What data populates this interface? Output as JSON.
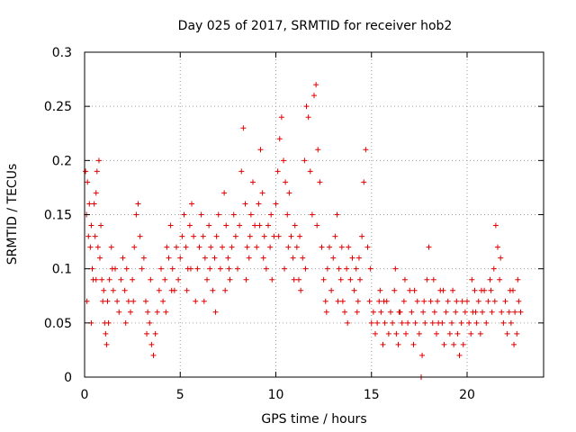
{
  "chart_data": {
    "type": "scatter",
    "title": "Day 025 of 2017, SRMTID for receiver hob2",
    "xlabel": "GPS time / hours",
    "ylabel": "SRMTID / TECUs",
    "xlim": [
      0,
      24
    ],
    "ylim": [
      0,
      0.3
    ],
    "x_ticks": [
      0,
      5,
      10,
      15,
      20
    ],
    "x_tick_labels": [
      "0",
      "5",
      "10",
      "15",
      "20"
    ],
    "y_ticks": [
      0,
      0.05,
      0.1,
      0.15,
      0.2,
      0.25,
      0.3
    ],
    "y_tick_labels": [
      "0",
      "0.05",
      "0.1",
      "0.15",
      "0.2",
      "0.25",
      "0.3"
    ],
    "grid": true,
    "marker": "plus",
    "color": "#e00000",
    "series": [
      {
        "name": "SRMTID",
        "points": [
          [
            0.05,
            0.19
          ],
          [
            0.1,
            0.15
          ],
          [
            0.15,
            0.18
          ],
          [
            0.2,
            0.13
          ],
          [
            0.25,
            0.16
          ],
          [
            0.3,
            0.12
          ],
          [
            0.35,
            0.14
          ],
          [
            0.4,
            0.1
          ],
          [
            0.45,
            0.09
          ],
          [
            0.5,
            0.16
          ],
          [
            0.55,
            0.13
          ],
          [
            0.6,
            0.17
          ],
          [
            0.65,
            0.19
          ],
          [
            0.7,
            0.12
          ],
          [
            0.75,
            0.2
          ],
          [
            0.8,
            0.11
          ],
          [
            0.85,
            0.14
          ],
          [
            0.9,
            0.09
          ],
          [
            0.95,
            0.07
          ],
          [
            1.0,
            0.08
          ],
          [
            1.05,
            0.05
          ],
          [
            1.1,
            0.04
          ],
          [
            1.15,
            0.03
          ],
          [
            1.2,
            0.07
          ],
          [
            1.3,
            0.09
          ],
          [
            1.4,
            0.12
          ],
          [
            1.5,
            0.08
          ],
          [
            1.6,
            0.1
          ],
          [
            1.7,
            0.07
          ],
          [
            1.8,
            0.06
          ],
          [
            1.9,
            0.09
          ],
          [
            2.0,
            0.11
          ],
          [
            2.1,
            0.08
          ],
          [
            2.2,
            0.1
          ],
          [
            2.3,
            0.07
          ],
          [
            2.4,
            0.06
          ],
          [
            2.5,
            0.09
          ],
          [
            2.6,
            0.12
          ],
          [
            2.7,
            0.15
          ],
          [
            2.8,
            0.16
          ],
          [
            2.9,
            0.13
          ],
          [
            3.0,
            0.1
          ],
          [
            3.1,
            0.11
          ],
          [
            3.2,
            0.07
          ],
          [
            3.3,
            0.06
          ],
          [
            3.4,
            0.05
          ],
          [
            3.5,
            0.03
          ],
          [
            3.6,
            0.02
          ],
          [
            3.7,
            0.04
          ],
          [
            3.8,
            0.06
          ],
          [
            3.9,
            0.08
          ],
          [
            4.0,
            0.1
          ],
          [
            4.1,
            0.07
          ],
          [
            4.2,
            0.09
          ],
          [
            4.3,
            0.12
          ],
          [
            4.4,
            0.11
          ],
          [
            4.5,
            0.14
          ],
          [
            4.6,
            0.1
          ],
          [
            4.7,
            0.08
          ],
          [
            4.8,
            0.12
          ],
          [
            4.9,
            0.09
          ],
          [
            5.0,
            0.11
          ],
          [
            5.1,
            0.13
          ],
          [
            5.2,
            0.15
          ],
          [
            5.3,
            0.12
          ],
          [
            5.4,
            0.1
          ],
          [
            5.5,
            0.14
          ],
          [
            5.6,
            0.16
          ],
          [
            5.7,
            0.13
          ],
          [
            5.8,
            0.07
          ],
          [
            5.9,
            0.1
          ],
          [
            6.0,
            0.12
          ],
          [
            6.1,
            0.15
          ],
          [
            6.2,
            0.13
          ],
          [
            6.3,
            0.11
          ],
          [
            6.4,
            0.09
          ],
          [
            6.5,
            0.14
          ],
          [
            6.6,
            0.12
          ],
          [
            6.7,
            0.08
          ],
          [
            6.8,
            0.11
          ],
          [
            6.9,
            0.13
          ],
          [
            7.0,
            0.15
          ],
          [
            7.1,
            0.1
          ],
          [
            7.2,
            0.12
          ],
          [
            7.3,
            0.17
          ],
          [
            7.4,
            0.14
          ],
          [
            7.5,
            0.11
          ],
          [
            7.6,
            0.09
          ],
          [
            7.7,
            0.12
          ],
          [
            7.8,
            0.15
          ],
          [
            7.9,
            0.13
          ],
          [
            8.0,
            0.1
          ],
          [
            8.1,
            0.14
          ],
          [
            8.2,
            0.19
          ],
          [
            8.3,
            0.23
          ],
          [
            8.4,
            0.16
          ],
          [
            8.5,
            0.12
          ],
          [
            8.6,
            0.11
          ],
          [
            8.7,
            0.15
          ],
          [
            8.8,
            0.18
          ],
          [
            8.9,
            0.14
          ],
          [
            9.0,
            0.12
          ],
          [
            9.1,
            0.16
          ],
          [
            9.2,
            0.21
          ],
          [
            9.3,
            0.17
          ],
          [
            9.4,
            0.13
          ],
          [
            9.5,
            0.1
          ],
          [
            9.6,
            0.14
          ],
          [
            9.7,
            0.12
          ],
          [
            9.8,
            0.09
          ],
          [
            9.9,
            0.13
          ],
          [
            10.0,
            0.16
          ],
          [
            10.1,
            0.19
          ],
          [
            10.2,
            0.22
          ],
          [
            10.3,
            0.24
          ],
          [
            10.4,
            0.2
          ],
          [
            10.5,
            0.18
          ],
          [
            10.6,
            0.15
          ],
          [
            10.7,
            0.17
          ],
          [
            10.8,
            0.13
          ],
          [
            10.9,
            0.11
          ],
          [
            11.0,
            0.14
          ],
          [
            11.1,
            0.12
          ],
          [
            11.2,
            0.09
          ],
          [
            11.3,
            0.08
          ],
          [
            11.4,
            0.11
          ],
          [
            11.5,
            0.2
          ],
          [
            11.6,
            0.25
          ],
          [
            11.7,
            0.24
          ],
          [
            11.8,
            0.19
          ],
          [
            11.9,
            0.15
          ],
          [
            12.0,
            0.26
          ],
          [
            12.1,
            0.27
          ],
          [
            12.2,
            0.21
          ],
          [
            12.3,
            0.18
          ],
          [
            12.4,
            0.12
          ],
          [
            12.5,
            0.09
          ],
          [
            12.6,
            0.07
          ],
          [
            12.7,
            0.1
          ],
          [
            12.8,
            0.12
          ],
          [
            12.9,
            0.08
          ],
          [
            13.0,
            0.11
          ],
          [
            13.1,
            0.13
          ],
          [
            13.2,
            0.15
          ],
          [
            13.3,
            0.1
          ],
          [
            13.4,
            0.09
          ],
          [
            13.5,
            0.07
          ],
          [
            13.6,
            0.06
          ],
          [
            13.7,
            0.1
          ],
          [
            13.8,
            0.12
          ],
          [
            13.9,
            0.09
          ],
          [
            14.0,
            0.11
          ],
          [
            14.1,
            0.08
          ],
          [
            14.2,
            0.1
          ],
          [
            14.3,
            0.07
          ],
          [
            14.4,
            0.09
          ],
          [
            14.5,
            0.13
          ],
          [
            14.6,
            0.18
          ],
          [
            14.7,
            0.21
          ],
          [
            14.8,
            0.12
          ],
          [
            14.9,
            0.07
          ],
          [
            15.0,
            0.05
          ],
          [
            15.1,
            0.06
          ],
          [
            15.2,
            0.04
          ],
          [
            15.3,
            0.05
          ],
          [
            15.4,
            0.07
          ],
          [
            15.5,
            0.06
          ],
          [
            15.6,
            0.03
          ],
          [
            15.7,
            0.05
          ],
          [
            15.8,
            0.07
          ],
          [
            15.9,
            0.04
          ],
          [
            16.0,
            0.06
          ],
          [
            16.1,
            0.05
          ],
          [
            16.2,
            0.08
          ],
          [
            16.3,
            0.04
          ],
          [
            16.4,
            0.03
          ],
          [
            16.5,
            0.06
          ],
          [
            16.6,
            0.05
          ],
          [
            16.7,
            0.07
          ],
          [
            16.8,
            0.04
          ],
          [
            16.9,
            0.05
          ],
          [
            17.0,
            0.08
          ],
          [
            17.1,
            0.06
          ],
          [
            17.2,
            0.03
          ],
          [
            17.3,
            0.05
          ],
          [
            17.4,
            0.07
          ],
          [
            17.5,
            0.04
          ],
          [
            17.6,
            0.0
          ],
          [
            17.7,
            0.06
          ],
          [
            17.8,
            0.05
          ],
          [
            17.9,
            0.09
          ],
          [
            18.0,
            0.12
          ],
          [
            18.1,
            0.07
          ],
          [
            18.2,
            0.05
          ],
          [
            18.3,
            0.06
          ],
          [
            18.4,
            0.04
          ],
          [
            18.5,
            0.05
          ],
          [
            18.6,
            0.08
          ],
          [
            18.7,
            0.05
          ],
          [
            18.8,
            0.03
          ],
          [
            18.9,
            0.06
          ],
          [
            19.0,
            0.07
          ],
          [
            19.1,
            0.04
          ],
          [
            19.2,
            0.05
          ],
          [
            19.3,
            0.03
          ],
          [
            19.4,
            0.06
          ],
          [
            19.5,
            0.04
          ],
          [
            19.6,
            0.02
          ],
          [
            19.7,
            0.05
          ],
          [
            19.8,
            0.03
          ],
          [
            19.9,
            0.06
          ],
          [
            20.0,
            0.07
          ],
          [
            20.1,
            0.05
          ],
          [
            20.2,
            0.04
          ],
          [
            20.3,
            0.06
          ],
          [
            20.4,
            0.08
          ],
          [
            20.5,
            0.05
          ],
          [
            20.6,
            0.07
          ],
          [
            20.7,
            0.04
          ],
          [
            20.8,
            0.06
          ],
          [
            20.9,
            0.08
          ],
          [
            21.0,
            0.05
          ],
          [
            21.1,
            0.07
          ],
          [
            21.2,
            0.09
          ],
          [
            21.3,
            0.06
          ],
          [
            21.4,
            0.1
          ],
          [
            21.5,
            0.14
          ],
          [
            21.6,
            0.12
          ],
          [
            21.7,
            0.09
          ],
          [
            21.8,
            0.06
          ],
          [
            21.9,
            0.05
          ],
          [
            22.0,
            0.07
          ],
          [
            22.1,
            0.04
          ],
          [
            22.2,
            0.06
          ],
          [
            22.3,
            0.05
          ],
          [
            22.4,
            0.08
          ],
          [
            22.5,
            0.06
          ],
          [
            22.6,
            0.04
          ],
          [
            22.7,
            0.07
          ],
          [
            22.8,
            0.06
          ],
          [
            0.12,
            0.07
          ],
          [
            0.35,
            0.05
          ],
          [
            1.25,
            0.05
          ],
          [
            2.15,
            0.05
          ],
          [
            3.45,
            0.09
          ],
          [
            4.25,
            0.06
          ],
          [
            5.35,
            0.08
          ],
          [
            6.25,
            0.07
          ],
          [
            6.85,
            0.06
          ],
          [
            7.55,
            0.1
          ],
          [
            8.45,
            0.09
          ],
          [
            9.35,
            0.11
          ],
          [
            9.75,
            0.15
          ],
          [
            10.45,
            0.1
          ],
          [
            10.95,
            0.09
          ],
          [
            11.25,
            0.13
          ],
          [
            12.65,
            0.06
          ],
          [
            13.25,
            0.07
          ],
          [
            13.75,
            0.05
          ],
          [
            14.25,
            0.06
          ],
          [
            14.95,
            0.1
          ],
          [
            15.45,
            0.08
          ],
          [
            16.25,
            0.1
          ],
          [
            16.75,
            0.09
          ],
          [
            17.25,
            0.08
          ],
          [
            17.75,
            0.07
          ],
          [
            18.25,
            0.09
          ],
          [
            18.75,
            0.08
          ],
          [
            19.25,
            0.08
          ],
          [
            19.75,
            0.07
          ],
          [
            20.25,
            0.09
          ],
          [
            20.75,
            0.08
          ],
          [
            21.25,
            0.08
          ],
          [
            21.75,
            0.11
          ],
          [
            22.25,
            0.08
          ],
          [
            22.65,
            0.09
          ],
          [
            0.6,
            0.09
          ],
          [
            1.45,
            0.1
          ],
          [
            2.55,
            0.07
          ],
          [
            3.25,
            0.04
          ],
          [
            4.55,
            0.08
          ],
          [
            5.55,
            0.1
          ],
          [
            6.55,
            0.1
          ],
          [
            7.35,
            0.08
          ],
          [
            8.65,
            0.13
          ],
          [
            9.15,
            0.14
          ],
          [
            10.15,
            0.13
          ],
          [
            10.65,
            0.12
          ],
          [
            11.55,
            0.1
          ],
          [
            12.15,
            0.14
          ],
          [
            13.45,
            0.12
          ],
          [
            14.35,
            0.11
          ],
          [
            15.65,
            0.07
          ],
          [
            16.45,
            0.06
          ],
          [
            17.65,
            0.02
          ],
          [
            18.45,
            0.07
          ],
          [
            19.45,
            0.07
          ],
          [
            20.45,
            0.06
          ],
          [
            21.45,
            0.07
          ],
          [
            22.45,
            0.03
          ]
        ]
      }
    ]
  }
}
